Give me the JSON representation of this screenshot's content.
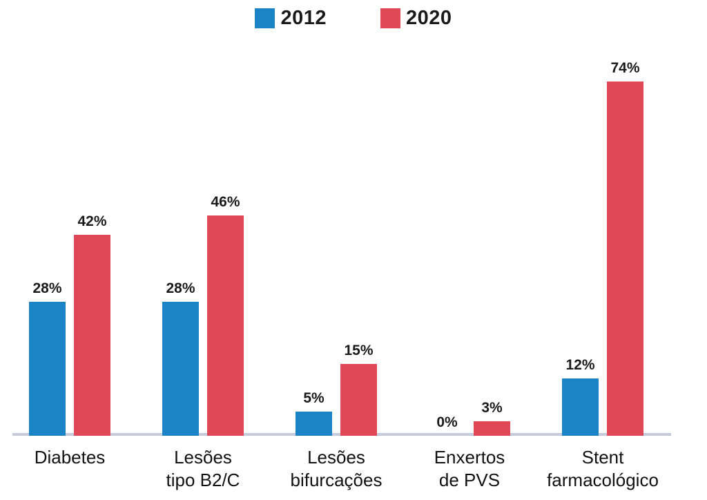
{
  "chart_data": {
    "type": "bar",
    "title": "",
    "xlabel": "",
    "ylabel": "",
    "unit": "%",
    "ylim": [
      0,
      80
    ],
    "grid": false,
    "legend_position": "top-center",
    "categories": [
      "Diabetes",
      "Lesões\ntipo B2/C",
      "Lesões\nbifurcações",
      "Enxertos\nde PVS",
      "Stent\nfarmacológico"
    ],
    "series": [
      {
        "name": "2012",
        "color": "#1b84c6",
        "values": [
          28,
          28,
          5,
          0,
          12
        ]
      },
      {
        "name": "2020",
        "color": "#e04757",
        "values": [
          42,
          46,
          15,
          3,
          74
        ]
      }
    ],
    "value_labels": {
      "2012": [
        "28%",
        "28%",
        "5%",
        "0%",
        "12%"
      ],
      "2020": [
        "42%",
        "46%",
        "15%",
        "3%",
        "74%"
      ]
    },
    "colors": {
      "series_2012": "#1b84c6",
      "series_2020": "#e04757",
      "baseline": "#c6cadd",
      "text": "#1a1a1a"
    }
  }
}
